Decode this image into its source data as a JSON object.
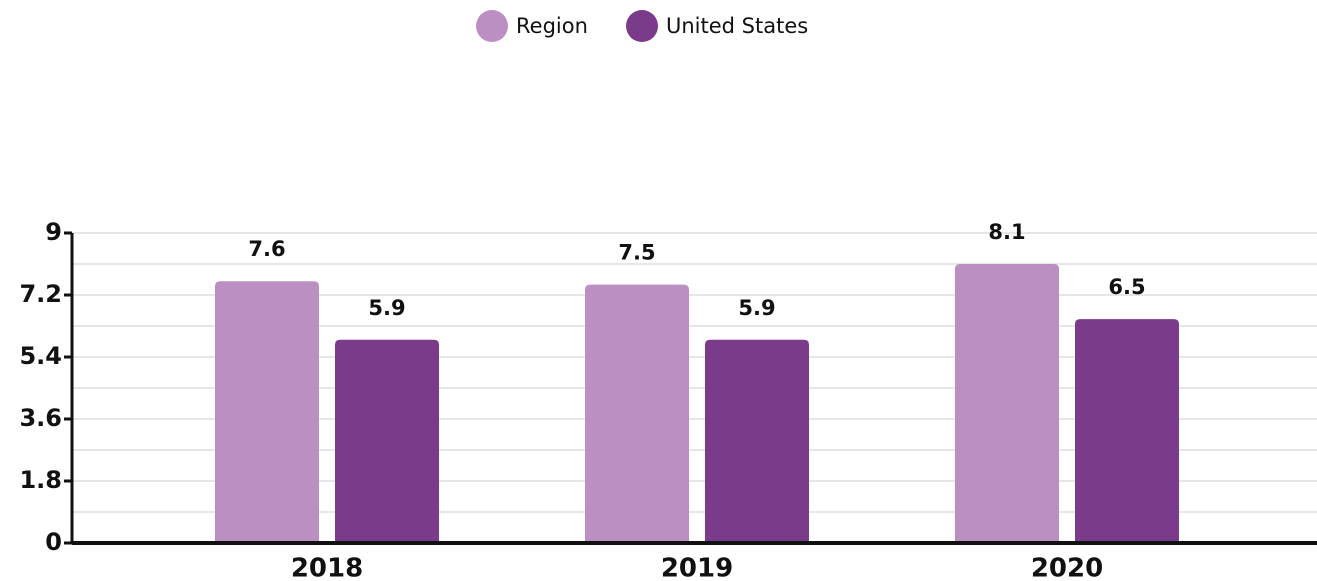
{
  "chart_data": {
    "type": "bar",
    "categories": [
      "2018",
      "2019",
      "2020"
    ],
    "series": [
      {
        "name": "Region",
        "color": "#bb8fc2",
        "values": [
          7.6,
          7.5,
          8.1
        ]
      },
      {
        "name": "United States",
        "color": "#7a3b8b",
        "values": [
          5.9,
          5.9,
          6.5
        ]
      }
    ],
    "ylim": [
      0,
      9
    ],
    "yticks": [
      0,
      1.8,
      3.6,
      5.4,
      7.2,
      9
    ],
    "minor_yticks": [
      0.9,
      2.7,
      4.5,
      6.3,
      8.1
    ],
    "grid": true,
    "legend": "top"
  }
}
